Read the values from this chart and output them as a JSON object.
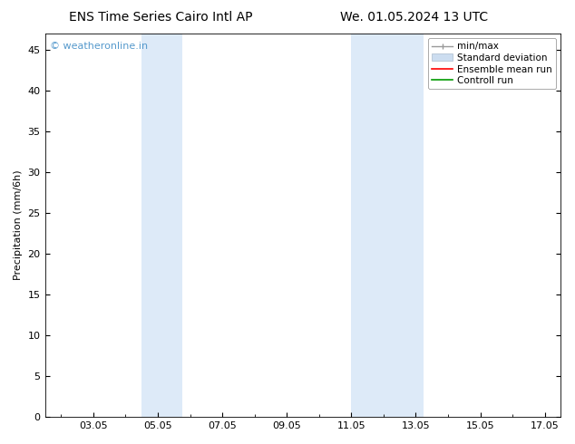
{
  "title_left": "ENS Time Series Cairo Intl AP",
  "title_right": "We. 01.05.2024 13 UTC",
  "ylabel": "Precipitation (mm/6h)",
  "ylim": [
    0,
    47
  ],
  "yticks": [
    0,
    5,
    10,
    15,
    20,
    25,
    30,
    35,
    40,
    45
  ],
  "xtick_labels": [
    "03.05",
    "05.05",
    "07.05",
    "09.05",
    "11.05",
    "13.05",
    "15.05",
    "17.05"
  ],
  "xtick_positions": [
    3,
    5,
    7,
    9,
    11,
    13,
    15,
    17
  ],
  "xlim": [
    1.5,
    17.5
  ],
  "background_color": "#ffffff",
  "plot_bg_color": "#ffffff",
  "shaded_regions": [
    {
      "x_start": 4.5,
      "x_end": 5.75,
      "color": "#ddeaf8"
    },
    {
      "x_start": 11.0,
      "x_end": 13.25,
      "color": "#ddeaf8"
    }
  ],
  "watermark_text": "© weatheronline.in",
  "watermark_color": "#5599cc",
  "title_fontsize": 10,
  "axis_label_fontsize": 8,
  "tick_fontsize": 8,
  "legend_fontsize": 7.5,
  "minmax_color": "#999999",
  "std_color": "#ccddf0",
  "ensemble_color": "#ff0000",
  "control_color": "#009900"
}
